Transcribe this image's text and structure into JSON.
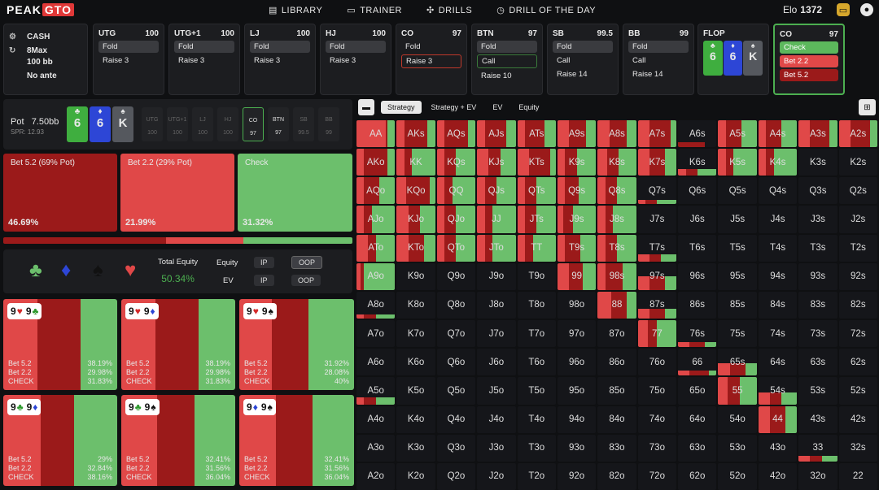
{
  "nav": {
    "logo_a": "PEAK",
    "logo_b": "GTO",
    "links": [
      {
        "icon": "book-icon",
        "glyph": "▤",
        "label": "LIBRARY"
      },
      {
        "icon": "gamepad-icon",
        "glyph": "▭",
        "label": "TRAINER"
      },
      {
        "icon": "target-icon",
        "glyph": "✣",
        "label": "DRILLS"
      },
      {
        "icon": "clock-icon",
        "glyph": "◷",
        "label": "DRILL OF THE DAY"
      }
    ],
    "elo_label": "Elo",
    "elo_value": "1372"
  },
  "game": {
    "type": "CASH",
    "players": "8Max",
    "stack": "100 bb",
    "ante": "No ante"
  },
  "positions": [
    {
      "name": "UTG",
      "stack": "100",
      "actions": [
        "Fold",
        "Raise 3"
      ],
      "selected": 0
    },
    {
      "name": "UTG+1",
      "stack": "100",
      "actions": [
        "Fold",
        "Raise 3"
      ],
      "selected": 0
    },
    {
      "name": "LJ",
      "stack": "100",
      "actions": [
        "Fold",
        "Raise 3"
      ],
      "selected": 0
    },
    {
      "name": "HJ",
      "stack": "100",
      "actions": [
        "Fold",
        "Raise 3"
      ],
      "selected": 0
    },
    {
      "name": "CO",
      "stack": "97",
      "actions": [
        "Fold",
        "Raise 3"
      ],
      "selected": 1,
      "outline": "red"
    },
    {
      "name": "BTN",
      "stack": "97",
      "actions": [
        "Fold",
        "Call",
        "Raise 10"
      ],
      "selected": 0,
      "outline_idx": 1
    },
    {
      "name": "SB",
      "stack": "99.5",
      "actions": [
        "Fold",
        "Call",
        "Raise 14"
      ],
      "selected": 0
    },
    {
      "name": "BB",
      "stack": "99",
      "actions": [
        "Fold",
        "Call",
        "Raise 14"
      ],
      "selected": 0
    }
  ],
  "flop": {
    "label": "FLOP",
    "cards": [
      {
        "rank": "6",
        "suit": "♣",
        "color": "#3fae3f"
      },
      {
        "rank": "6",
        "suit": "♦",
        "color": "#2d46d6"
      },
      {
        "rank": "K",
        "suit": "♠",
        "color": "#55585e"
      }
    ]
  },
  "current": {
    "name": "CO",
    "stack": "97",
    "actions": [
      {
        "label": "Check",
        "color": "#5cb85c"
      },
      {
        "label": "Bet 2.2",
        "color": "#e04848"
      },
      {
        "label": "Bet 5.2",
        "color": "#9b1a1a"
      }
    ]
  },
  "pot": {
    "label": "Pot",
    "value": "7.50bb",
    "spr": "SPR: 12.93"
  },
  "seats": [
    {
      "name": "UTG",
      "stack": "100"
    },
    {
      "name": "UTG+1",
      "stack": "100"
    },
    {
      "name": "LJ",
      "stack": "100"
    },
    {
      "name": "HJ",
      "stack": "100"
    },
    {
      "name": "CO",
      "stack": "97",
      "active": true
    },
    {
      "name": "BTN",
      "stack": "97",
      "mid": true
    },
    {
      "name": "SB",
      "stack": "99.5"
    },
    {
      "name": "BB",
      "stack": "99"
    }
  ],
  "strategy": [
    {
      "label": "Bet 5.2 (69% Pot)",
      "pct": "46.69%",
      "frac": 0.4669,
      "color": "#9b1a1a"
    },
    {
      "label": "Bet 2.2 (29% Pot)",
      "pct": "21.99%",
      "frac": 0.2199,
      "color": "#e04848"
    },
    {
      "label": "Check",
      "pct": "31.32%",
      "frac": 0.3132,
      "color": "#6cbf6c"
    }
  ],
  "equity": {
    "suits": [
      {
        "glyph": "♣",
        "color": "#6cbf6c",
        "name": "club-icon"
      },
      {
        "glyph": "♦",
        "color": "#2d46d6",
        "name": "diamond-icon"
      },
      {
        "glyph": "♠",
        "color": "#111",
        "name": "spade-icon"
      },
      {
        "glyph": "♥",
        "color": "#e04848",
        "name": "heart-icon"
      }
    ],
    "total_label": "Total Equity",
    "total_value": "50.34%",
    "equity_label": "Equity",
    "ev_label": "EV",
    "ip": "IP",
    "oop": "OOP"
  },
  "combos": [
    {
      "r1": "9",
      "s1": "♥",
      "c1": "#d42a2a",
      "r2": "9",
      "s2": "♣",
      "c2": "#2e9a2e",
      "bet52": "38.19%",
      "bet22": "29.98%",
      "check": "31.83%",
      "f": [
        0.3819,
        0.2998,
        0.3183
      ]
    },
    {
      "r1": "9",
      "s1": "♥",
      "c1": "#d42a2a",
      "r2": "9",
      "s2": "♦",
      "c2": "#2d46d6",
      "bet52": "38.19%",
      "bet22": "29.98%",
      "check": "31.83%",
      "f": [
        0.3819,
        0.2998,
        0.3183
      ]
    },
    {
      "r1": "9",
      "s1": "♥",
      "c1": "#d42a2a",
      "r2": "9",
      "s2": "♠",
      "c2": "#111",
      "bet52": "31.92%",
      "bet22": "28.08%",
      "check": "40%",
      "f": [
        0.3192,
        0.2808,
        0.4
      ]
    },
    {
      "r1": "9",
      "s1": "♣",
      "c1": "#2e9a2e",
      "r2": "9",
      "s2": "♦",
      "c2": "#2d46d6",
      "bet52": "29%",
      "bet22": "32.84%",
      "check": "38.16%",
      "f": [
        0.29,
        0.3284,
        0.3816
      ]
    },
    {
      "r1": "9",
      "s1": "♣",
      "c1": "#2e9a2e",
      "r2": "9",
      "s2": "♠",
      "c2": "#111",
      "bet52": "32.41%",
      "bet22": "31.56%",
      "check": "36.04%",
      "f": [
        0.3241,
        0.3156,
        0.3604
      ]
    },
    {
      "r1": "9",
      "s1": "♦",
      "c1": "#2d46d6",
      "r2": "9",
      "s2": "♠",
      "c2": "#111",
      "bet52": "32.41%",
      "bet22": "31.56%",
      "check": "36.04%",
      "f": [
        0.3241,
        0.3156,
        0.3604
      ]
    }
  ],
  "combo_labels": {
    "bet52": "Bet 5.2",
    "bet22": "Bet 2.2",
    "check": "CHECK"
  },
  "tabs": [
    "Strategy",
    "Strategy + EV",
    "EV",
    "Equity"
  ],
  "matrix": [
    [
      "AA",
      "AKs",
      "AQs",
      "AJs",
      "ATs",
      "A9s",
      "A8s",
      "A7s",
      "A6s",
      "A5s",
      "A4s",
      "A3s",
      "A2s"
    ],
    [
      "AKo",
      "KK",
      "KQs",
      "KJs",
      "KTs",
      "K9s",
      "K8s",
      "K7s",
      "K6s",
      "K5s",
      "K4s",
      "K3s",
      "K2s"
    ],
    [
      "AQo",
      "KQo",
      "QQ",
      "QJs",
      "QTs",
      "Q9s",
      "Q8s",
      "Q7s",
      "Q6s",
      "Q5s",
      "Q4s",
      "Q3s",
      "Q2s"
    ],
    [
      "AJo",
      "KJo",
      "QJo",
      "JJ",
      "JTs",
      "J9s",
      "J8s",
      "J7s",
      "J6s",
      "J5s",
      "J4s",
      "J3s",
      "J2s"
    ],
    [
      "ATo",
      "KTo",
      "QTo",
      "JTo",
      "TT",
      "T9s",
      "T8s",
      "T7s",
      "T6s",
      "T5s",
      "T4s",
      "T3s",
      "T2s"
    ],
    [
      "A9o",
      "K9o",
      "Q9o",
      "J9o",
      "T9o",
      "99",
      "98s",
      "97s",
      "96s",
      "95s",
      "94s",
      "93s",
      "92s"
    ],
    [
      "A8o",
      "K8o",
      "Q8o",
      "J8o",
      "T8o",
      "98o",
      "88",
      "87s",
      "86s",
      "85s",
      "84s",
      "83s",
      "82s"
    ],
    [
      "A7o",
      "K7o",
      "Q7o",
      "J7o",
      "T7o",
      "97o",
      "87o",
      "77",
      "76s",
      "75s",
      "74s",
      "73s",
      "72s"
    ],
    [
      "A6o",
      "K6o",
      "Q6o",
      "J6o",
      "T6o",
      "96o",
      "86o",
      "76o",
      "66",
      "65s",
      "64s",
      "63s",
      "62s"
    ],
    [
      "A5o",
      "K5o",
      "Q5o",
      "J5o",
      "T5o",
      "95o",
      "85o",
      "75o",
      "65o",
      "55",
      "54s",
      "53s",
      "52s"
    ],
    [
      "A4o",
      "K4o",
      "Q4o",
      "J4o",
      "T4o",
      "94o",
      "84o",
      "74o",
      "64o",
      "54o",
      "44",
      "43s",
      "42s"
    ],
    [
      "A3o",
      "K3o",
      "Q3o",
      "J3o",
      "T3o",
      "93o",
      "83o",
      "73o",
      "63o",
      "53o",
      "43o",
      "33",
      "32s"
    ],
    [
      "A2o",
      "K2o",
      "Q2o",
      "J2o",
      "T2o",
      "92o",
      "82o",
      "72o",
      "62o",
      "52o",
      "42o",
      "32o",
      "22"
    ]
  ],
  "matrix_strategy": {
    "AA": [
      0.05,
      0.75,
      0.2,
      1
    ],
    "AKs": [
      0.6,
      0.2,
      0.2,
      1
    ],
    "AQs": [
      0.6,
      0.2,
      0.2,
      1
    ],
    "AJs": [
      0.55,
      0.2,
      0.25,
      1
    ],
    "ATs": [
      0.5,
      0.2,
      0.3,
      1
    ],
    "A9s": [
      0.45,
      0.3,
      0.25,
      1
    ],
    "A8s": [
      0.45,
      0.3,
      0.25,
      1
    ],
    "A7s": [
      0.55,
      0.3,
      0.15,
      1
    ],
    "A6s": [
      0.7,
      0.0,
      0.0,
      0.2
    ],
    "A5s": [
      0.4,
      0.2,
      0.4,
      1
    ],
    "A4s": [
      0.4,
      0.2,
      0.4,
      1
    ],
    "A3s": [
      0.5,
      0.3,
      0.2,
      1
    ],
    "A2s": [
      0.5,
      0.3,
      0.2,
      1
    ],
    "AKo": [
      0.6,
      0.2,
      0.2,
      1
    ],
    "KK": [
      0.2,
      0.2,
      0.6,
      1
    ],
    "KQs": [
      0.3,
      0.2,
      0.5,
      1
    ],
    "KJs": [
      0.3,
      0.3,
      0.4,
      1
    ],
    "KTs": [
      0.55,
      0.3,
      0.15,
      1
    ],
    "K9s": [
      0.3,
      0.2,
      0.5,
      1
    ],
    "K8s": [
      0.3,
      0.25,
      0.45,
      1
    ],
    "K7s": [
      0.4,
      0.3,
      0.3,
      1
    ],
    "K6s": [
      0.3,
      0.2,
      0.5,
      0.25
    ],
    "K5s": [
      0.2,
      0.2,
      0.6,
      1
    ],
    "K4s": [
      0.2,
      0.2,
      0.6,
      1
    ],
    "AQo": [
      0.4,
      0.2,
      0.4,
      1
    ],
    "KQo": [
      0.6,
      0.25,
      0.15,
      1
    ],
    "QQ": [
      0.2,
      0.2,
      0.6,
      1
    ],
    "QJs": [
      0.3,
      0.2,
      0.5,
      1
    ],
    "QTs": [
      0.3,
      0.2,
      0.5,
      1
    ],
    "Q9s": [
      0.35,
      0.2,
      0.45,
      1
    ],
    "Q8s": [
      0.3,
      0.2,
      0.5,
      1
    ],
    "Q7s": [
      0.3,
      0.2,
      0.5,
      0.15
    ],
    "AJo": [
      0.2,
      0.2,
      0.6,
      1
    ],
    "KJo": [
      0.3,
      0.3,
      0.4,
      1
    ],
    "QJo": [
      0.3,
      0.2,
      0.5,
      1
    ],
    "JJ": [
      0.2,
      0.2,
      0.6,
      1
    ],
    "JTs": [
      0.3,
      0.2,
      0.5,
      1
    ],
    "J9s": [
      0.25,
      0.15,
      0.6,
      1
    ],
    "J8s": [
      0.2,
      0.2,
      0.6,
      1
    ],
    "ATo": [
      0.2,
      0.3,
      0.5,
      1
    ],
    "KTo": [
      0.4,
      0.3,
      0.3,
      1
    ],
    "QTo": [
      0.3,
      0.2,
      0.5,
      1
    ],
    "JTo": [
      0.2,
      0.2,
      0.6,
      1
    ],
    "TT": [
      0.2,
      0.2,
      0.6,
      1
    ],
    "T9s": [
      0.4,
      0.2,
      0.4,
      1
    ],
    "T8s": [
      0.3,
      0.2,
      0.5,
      1
    ],
    "T7s": [
      0.3,
      0.3,
      0.4,
      0.25
    ],
    "A9o": [
      0.1,
      0.1,
      0.8,
      1
    ],
    "99": [
      0.35,
      0.3,
      0.35,
      1
    ],
    "98s": [
      0.45,
      0.2,
      0.35,
      1
    ],
    "97s": [
      0.4,
      0.3,
      0.3,
      0.5
    ],
    "A8o": [
      0.3,
      0.2,
      0.5,
      0.15
    ],
    "88": [
      0.4,
      0.35,
      0.25,
      1
    ],
    "87s": [
      0.4,
      0.3,
      0.3,
      0.35
    ],
    "77": [
      0.25,
      0.25,
      0.5,
      1
    ],
    "76s": [
      0.4,
      0.3,
      0.3,
      0.2
    ],
    "66": [
      0.5,
      0.3,
      0.2,
      0.2
    ],
    "65s": [
      0.4,
      0.3,
      0.3,
      0.45
    ],
    "A5o": [
      0.3,
      0.2,
      0.5,
      0.25
    ],
    "55": [
      0.3,
      0.25,
      0.45,
      1
    ],
    "54s": [
      0.3,
      0.3,
      0.4,
      0.45
    ],
    "44": [
      0.4,
      0.3,
      0.3,
      1
    ],
    "33": [
      0.3,
      0.3,
      0.4,
      0.2
    ]
  }
}
